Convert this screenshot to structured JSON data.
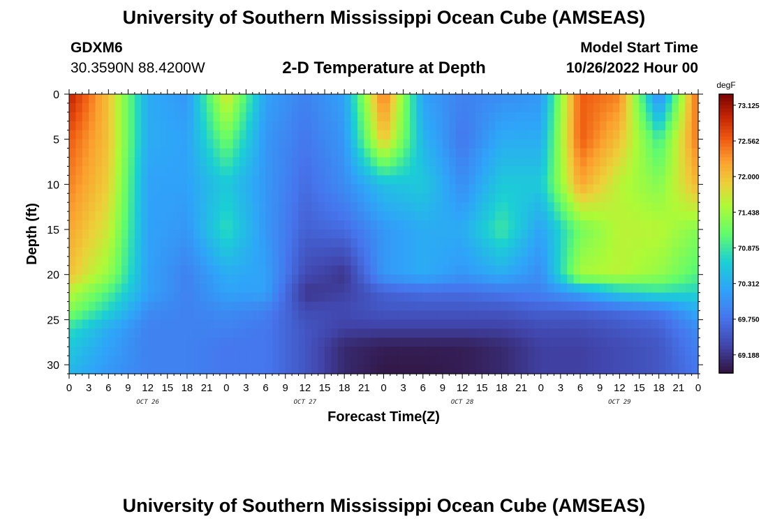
{
  "header": {
    "title": "University of Southern Mississippi Ocean Cube (AMSEAS)",
    "station": "GDXM6",
    "coords": "30.3590N  88.4200W",
    "plot_title": "2-D Temperature at Depth",
    "model_start_label": "Model Start Time",
    "model_start_value": "10/26/2022 Hour 00",
    "footer_title": "University of Southern Mississippi Ocean Cube (AMSEAS)"
  },
  "chart_data": {
    "type": "heatmap",
    "xlabel": "Forecast Time(Z)",
    "ylabel": "Depth (ft)",
    "x_range_hours": [
      0,
      96
    ],
    "y_range_ft": [
      0,
      31
    ],
    "y_reversed": true,
    "x_tick_labels": [
      "0",
      "3",
      "6",
      "9",
      "12",
      "15",
      "18",
      "21",
      "0",
      "3",
      "6",
      "9",
      "12",
      "15",
      "18",
      "21",
      "0",
      "3",
      "6",
      "9",
      "12",
      "15",
      "18",
      "21",
      "0",
      "3",
      "6",
      "9",
      "12",
      "15",
      "18",
      "21",
      "0"
    ],
    "y_tick_labels": [
      "0",
      "5",
      "10",
      "15",
      "20",
      "25",
      "30"
    ],
    "y_tick_values": [
      0,
      5,
      10,
      15,
      20,
      25,
      30
    ],
    "date_labels": [
      {
        "label": "OCT 26",
        "hour": 12
      },
      {
        "label": "OCT 27",
        "hour": 36
      },
      {
        "label": "OCT 28",
        "hour": 60
      },
      {
        "label": "OCT 29",
        "hour": 84
      }
    ],
    "colorbar": {
      "unit": "degF",
      "min": 68.9,
      "max": 73.3,
      "tick_labels": [
        "73.125",
        "72.562",
        "72.000",
        "71.438",
        "70.875",
        "70.312",
        "69.750",
        "69.188"
      ],
      "tick_values": [
        73.125,
        72.562,
        72.0,
        71.438,
        70.875,
        70.312,
        69.75,
        69.188
      ]
    },
    "depth_levels_ft": [
      0,
      5,
      10,
      15,
      20,
      22,
      24,
      26,
      28,
      31
    ],
    "grid_hours": [
      0,
      6,
      12,
      18,
      24,
      30,
      36,
      42,
      48,
      54,
      60,
      66,
      72,
      78,
      84,
      90,
      96
    ],
    "values": [
      [
        73.0,
        72.0,
        70.3,
        70.1,
        71.8,
        70.2,
        69.9,
        70.2,
        72.5,
        70.2,
        69.9,
        70.0,
        70.1,
        72.6,
        72.4,
        69.9,
        72.6
      ],
      [
        72.6,
        72.0,
        70.3,
        70.2,
        71.2,
        70.1,
        69.8,
        70.1,
        72.0,
        70.4,
        69.8,
        70.3,
        70.3,
        72.6,
        72.0,
        70.9,
        72.5
      ],
      [
        72.4,
        71.9,
        70.2,
        70.2,
        70.6,
        70.1,
        69.7,
        70.0,
        70.5,
        70.6,
        70.0,
        70.6,
        70.6,
        72.2,
        71.6,
        71.3,
        72.1
      ],
      [
        72.2,
        71.7,
        70.2,
        70.1,
        70.8,
        70.1,
        69.6,
        69.7,
        70.1,
        70.3,
        70.3,
        70.9,
        70.2,
        71.2,
        71.6,
        71.6,
        71.3
      ],
      [
        72.0,
        71.4,
        70.2,
        69.9,
        70.3,
        70.2,
        69.4,
        69.2,
        70.1,
        70.3,
        70.1,
        70.3,
        70.0,
        71.5,
        71.6,
        71.4,
        71.0
      ],
      [
        71.6,
        71.0,
        70.2,
        69.9,
        70.2,
        70.2,
        69.2,
        69.3,
        69.6,
        69.7,
        69.7,
        69.8,
        69.9,
        70.2,
        70.6,
        70.8,
        70.7
      ],
      [
        71.3,
        70.7,
        70.0,
        69.9,
        70.0,
        69.9,
        69.4,
        69.4,
        69.5,
        69.5,
        69.5,
        69.5,
        69.6,
        69.6,
        69.7,
        69.8,
        70.3
      ],
      [
        70.8,
        70.3,
        69.9,
        69.9,
        69.9,
        69.8,
        69.5,
        69.3,
        69.3,
        69.3,
        69.3,
        69.3,
        69.4,
        69.4,
        69.5,
        69.6,
        70.0
      ],
      [
        70.6,
        70.2,
        69.9,
        69.9,
        69.8,
        69.8,
        69.5,
        69.1,
        69.0,
        69.0,
        69.0,
        69.1,
        69.3,
        69.3,
        69.4,
        69.5,
        69.9
      ],
      [
        70.4,
        70.1,
        69.9,
        69.9,
        69.8,
        69.8,
        69.5,
        69.1,
        68.95,
        68.95,
        69.0,
        69.1,
        69.3,
        69.3,
        69.4,
        69.5,
        69.8
      ]
    ]
  }
}
